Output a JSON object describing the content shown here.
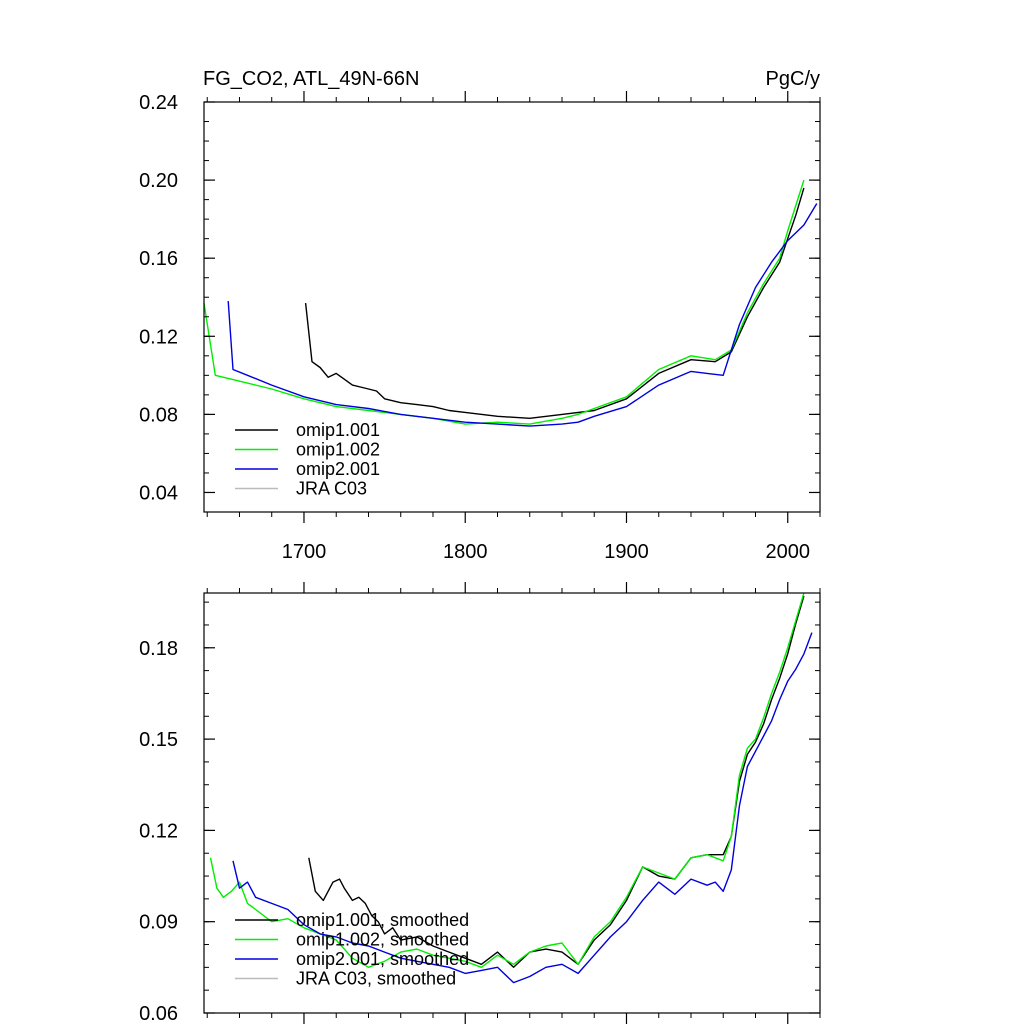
{
  "title_left": "FG_CO2, ATL_49N-66N",
  "title_right": "PgC/y",
  "colors": {
    "omip1_001": "#000000",
    "omip1_002": "#00ee00",
    "omip2_001": "#0000dd",
    "jra_c03": "#bbbbbb"
  },
  "chart_data": [
    {
      "type": "line",
      "title": "FG_CO2, ATL_49N-66N",
      "units": "PgC/y",
      "xlim": [
        1638,
        2020
      ],
      "ylim": [
        0.03,
        0.24
      ],
      "x_ticks": [
        1700,
        1800,
        1900,
        2000
      ],
      "x_tick_labels": [
        "1700",
        "1800",
        "1900",
        "2000"
      ],
      "y_ticks": [
        0.04,
        0.08,
        0.12,
        0.16,
        0.2,
        0.24
      ],
      "y_tick_labels": [
        "0.04",
        "0.08",
        "0.12",
        "0.16",
        "0.20",
        "0.24"
      ],
      "legend": [
        "omip1.001",
        "omip1.002",
        "omip2.001",
        "JRA C03"
      ],
      "legend_position": "bottom-left",
      "series": [
        {
          "name": "omip1.001",
          "color_key": "omip1_001",
          "x": [
            1701,
            1705,
            1710,
            1715,
            1720,
            1725,
            1730,
            1735,
            1740,
            1745,
            1750,
            1760,
            1770,
            1780,
            1790,
            1800,
            1820,
            1840,
            1860,
            1880,
            1900,
            1920,
            1940,
            1955,
            1965,
            1975,
            1985,
            1995,
            2000,
            2005,
            2010
          ],
          "y": [
            0.137,
            0.107,
            0.104,
            0.099,
            0.101,
            0.098,
            0.095,
            0.094,
            0.093,
            0.092,
            0.088,
            0.086,
            0.085,
            0.084,
            0.082,
            0.081,
            0.079,
            0.078,
            0.08,
            0.082,
            0.088,
            0.101,
            0.108,
            0.107,
            0.112,
            0.13,
            0.145,
            0.158,
            0.17,
            0.182,
            0.196
          ]
        },
        {
          "name": "omip1.002",
          "color_key": "omip1_002",
          "x": [
            1638,
            1645,
            1655,
            1665,
            1680,
            1700,
            1720,
            1740,
            1760,
            1780,
            1800,
            1820,
            1840,
            1860,
            1870,
            1880,
            1900,
            1920,
            1940,
            1955,
            1965,
            1975,
            1985,
            1995,
            2000,
            2005,
            2010
          ],
          "y": [
            0.137,
            0.1,
            0.098,
            0.096,
            0.093,
            0.088,
            0.084,
            0.082,
            0.08,
            0.078,
            0.075,
            0.076,
            0.075,
            0.078,
            0.08,
            0.083,
            0.089,
            0.103,
            0.11,
            0.108,
            0.113,
            0.132,
            0.147,
            0.16,
            0.174,
            0.187,
            0.2
          ]
        },
        {
          "name": "omip2.001",
          "color_key": "omip2_001",
          "x": [
            1653,
            1656,
            1665,
            1680,
            1700,
            1720,
            1740,
            1760,
            1780,
            1800,
            1820,
            1840,
            1860,
            1870,
            1880,
            1900,
            1920,
            1940,
            1950,
            1960,
            1970,
            1980,
            1990,
            2000,
            2010,
            2018
          ],
          "y": [
            0.138,
            0.103,
            0.1,
            0.095,
            0.089,
            0.085,
            0.083,
            0.08,
            0.078,
            0.076,
            0.075,
            0.074,
            0.075,
            0.076,
            0.079,
            0.084,
            0.095,
            0.102,
            0.101,
            0.1,
            0.126,
            0.145,
            0.158,
            0.169,
            0.177,
            0.188
          ]
        }
      ]
    },
    {
      "type": "line",
      "title": "",
      "xlim": [
        1638,
        2020
      ],
      "ylim": [
        0.06,
        0.198
      ],
      "x_ticks": [
        1700,
        1800,
        1900,
        2000
      ],
      "y_ticks": [
        0.06,
        0.09,
        0.12,
        0.15,
        0.18
      ],
      "y_tick_labels": [
        "0.06",
        "0.09",
        "0.12",
        "0.15",
        "0.18"
      ],
      "legend": [
        "omip1.001, smoothed",
        "omip1.002, smoothed",
        "omip2.001, smoothed",
        "JRA C03, smoothed"
      ],
      "legend_position": "bottom-left",
      "series": [
        {
          "name": "omip1.001, smoothed",
          "color_key": "omip1_001",
          "x": [
            1703,
            1707,
            1712,
            1718,
            1722,
            1725,
            1730,
            1734,
            1738,
            1742,
            1746,
            1750,
            1755,
            1760,
            1770,
            1780,
            1790,
            1800,
            1810,
            1820,
            1830,
            1840,
            1850,
            1860,
            1870,
            1880,
            1890,
            1900,
            1910,
            1920,
            1930,
            1940,
            1950,
            1960,
            1965,
            1970,
            1975,
            1980,
            1985,
            1990,
            1995,
            2000,
            2005,
            2010
          ],
          "y": [
            0.111,
            0.1,
            0.097,
            0.103,
            0.104,
            0.101,
            0.097,
            0.098,
            0.096,
            0.092,
            0.09,
            0.086,
            0.088,
            0.084,
            0.085,
            0.082,
            0.08,
            0.078,
            0.076,
            0.08,
            0.075,
            0.08,
            0.081,
            0.08,
            0.076,
            0.084,
            0.089,
            0.097,
            0.108,
            0.105,
            0.104,
            0.111,
            0.112,
            0.112,
            0.118,
            0.136,
            0.145,
            0.149,
            0.155,
            0.163,
            0.17,
            0.178,
            0.188,
            0.197
          ]
        },
        {
          "name": "omip1.002, smoothed",
          "color_key": "omip1_002",
          "x": [
            1642,
            1646,
            1650,
            1655,
            1660,
            1665,
            1670,
            1680,
            1690,
            1700,
            1710,
            1720,
            1730,
            1740,
            1750,
            1760,
            1770,
            1780,
            1790,
            1800,
            1810,
            1820,
            1830,
            1840,
            1850,
            1860,
            1870,
            1880,
            1890,
            1900,
            1910,
            1920,
            1930,
            1940,
            1950,
            1960,
            1965,
            1970,
            1975,
            1980,
            1985,
            1990,
            1995,
            2000,
            2005,
            2010
          ],
          "y": [
            0.111,
            0.101,
            0.098,
            0.1,
            0.103,
            0.096,
            0.094,
            0.09,
            0.091,
            0.088,
            0.086,
            0.084,
            0.078,
            0.075,
            0.077,
            0.08,
            0.081,
            0.079,
            0.078,
            0.077,
            0.075,
            0.079,
            0.076,
            0.08,
            0.082,
            0.083,
            0.076,
            0.085,
            0.09,
            0.098,
            0.108,
            0.106,
            0.104,
            0.111,
            0.112,
            0.11,
            0.118,
            0.138,
            0.147,
            0.15,
            0.157,
            0.165,
            0.172,
            0.18,
            0.189,
            0.198
          ]
        },
        {
          "name": "omip2.001, smoothed",
          "color_key": "omip2_001",
          "x": [
            1656,
            1660,
            1665,
            1670,
            1680,
            1690,
            1700,
            1710,
            1720,
            1730,
            1740,
            1750,
            1760,
            1770,
            1780,
            1790,
            1800,
            1810,
            1820,
            1830,
            1840,
            1850,
            1860,
            1870,
            1880,
            1890,
            1900,
            1910,
            1920,
            1930,
            1940,
            1950,
            1955,
            1960,
            1965,
            1970,
            1975,
            1980,
            1985,
            1990,
            1995,
            2000,
            2005,
            2010,
            2015
          ],
          "y": [
            0.11,
            0.101,
            0.103,
            0.098,
            0.096,
            0.094,
            0.089,
            0.086,
            0.085,
            0.083,
            0.082,
            0.08,
            0.078,
            0.077,
            0.076,
            0.075,
            0.073,
            0.074,
            0.075,
            0.07,
            0.072,
            0.075,
            0.076,
            0.073,
            0.079,
            0.085,
            0.09,
            0.097,
            0.103,
            0.099,
            0.104,
            0.102,
            0.103,
            0.1,
            0.107,
            0.128,
            0.141,
            0.146,
            0.151,
            0.156,
            0.163,
            0.169,
            0.173,
            0.178,
            0.185
          ]
        }
      ]
    }
  ]
}
